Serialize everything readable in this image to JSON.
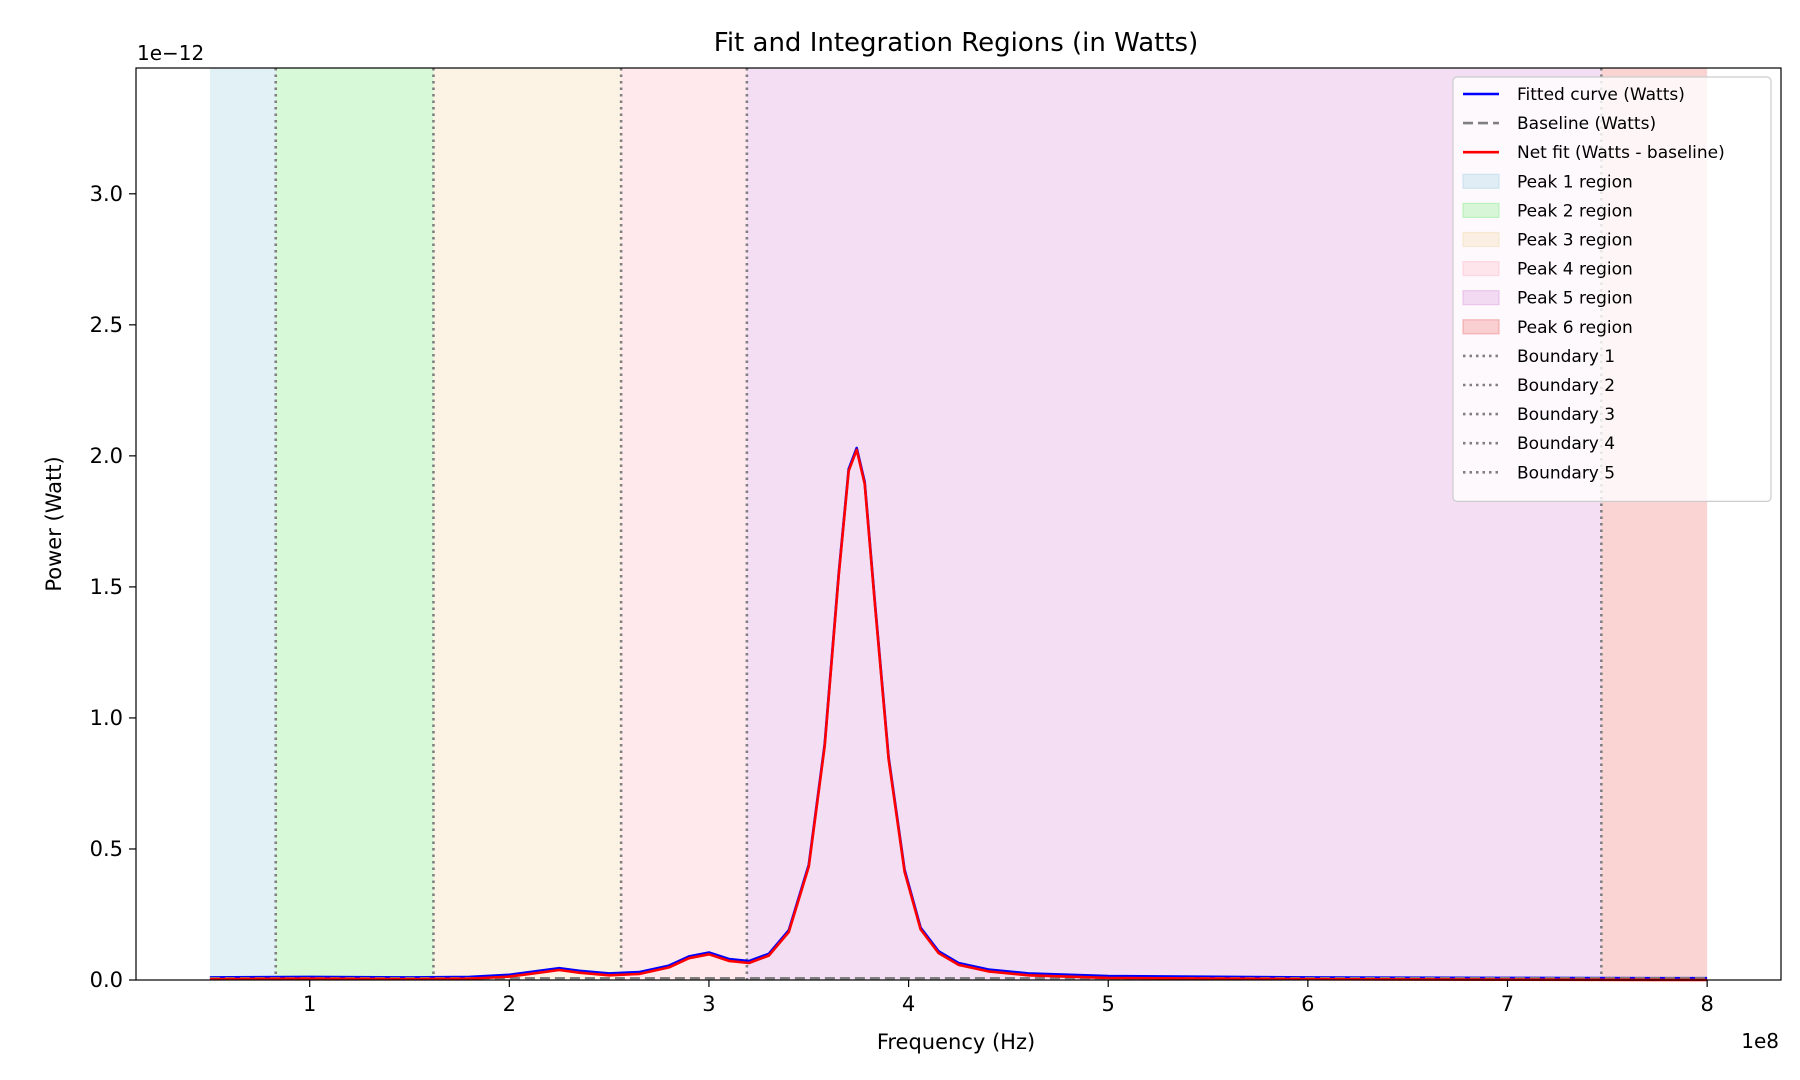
{
  "chart_data": {
    "type": "line",
    "title": "Fit and Integration Regions (in Watts)",
    "xlabel": "Frequency (Hz)",
    "ylabel": "Power (Watt)",
    "x_offset_label": "1e8",
    "y_offset_label": "1e−12",
    "xlim": [
      0.13,
      8.37
    ],
    "ylim": [
      0,
      3.48
    ],
    "x_ticks": [
      1,
      2,
      3,
      4,
      5,
      6,
      7,
      8
    ],
    "x_tick_labels": [
      "1",
      "2",
      "3",
      "4",
      "5",
      "6",
      "7",
      "8"
    ],
    "y_ticks": [
      0,
      0.5,
      1.0,
      1.5,
      2.0,
      2.5,
      3.0
    ],
    "y_tick_labels": [
      "0.0",
      "0.5",
      "1.0",
      "1.5",
      "2.0",
      "2.5",
      "3.0"
    ],
    "grid": false,
    "legend_position": "top-right",
    "regions": [
      {
        "name": "Peak 1 region",
        "x0": 0.5,
        "x1": 0.83,
        "color": "#add8e6"
      },
      {
        "name": "Peak 2 region",
        "x0": 0.83,
        "x1": 1.62,
        "color": "#90ee90"
      },
      {
        "name": "Peak 3 region",
        "x0": 1.62,
        "x1": 2.56,
        "color": "#f5deb3"
      },
      {
        "name": "Peak 4 region",
        "x0": 2.56,
        "x1": 3.19,
        "color": "#ffc0cb"
      },
      {
        "name": "Peak 5 region",
        "x0": 3.19,
        "x1": 7.47,
        "color": "#dda0dd"
      },
      {
        "name": "Peak 6 region",
        "x0": 7.47,
        "x1": 8.0,
        "color": "#f08080"
      }
    ],
    "boundaries": [
      {
        "name": "Boundary 1",
        "x": 0.83
      },
      {
        "name": "Boundary 2",
        "x": 1.62
      },
      {
        "name": "Boundary 3",
        "x": 2.56
      },
      {
        "name": "Boundary 4",
        "x": 3.19
      },
      {
        "name": "Boundary 5",
        "x": 7.47
      }
    ],
    "series": [
      {
        "name": "Fitted curve (Watts)",
        "color": "#0000ff",
        "style": "solid",
        "x": [
          0.5,
          1.0,
          1.5,
          1.8,
          2.0,
          2.15,
          2.25,
          2.35,
          2.5,
          2.65,
          2.8,
          2.9,
          3.0,
          3.1,
          3.2,
          3.3,
          3.4,
          3.5,
          3.58,
          3.65,
          3.7,
          3.74,
          3.78,
          3.83,
          3.9,
          3.98,
          4.06,
          4.15,
          4.25,
          4.4,
          4.6,
          5.0,
          6.0,
          7.0,
          8.0
        ],
        "y": [
          0.01,
          0.012,
          0.01,
          0.012,
          0.02,
          0.035,
          0.045,
          0.035,
          0.025,
          0.03,
          0.055,
          0.09,
          0.105,
          0.08,
          0.072,
          0.1,
          0.19,
          0.44,
          0.9,
          1.55,
          1.95,
          2.03,
          1.9,
          1.45,
          0.85,
          0.42,
          0.2,
          0.11,
          0.065,
          0.04,
          0.025,
          0.015,
          0.01,
          0.008,
          0.007
        ]
      },
      {
        "name": "Baseline (Watts)",
        "color": "#808080",
        "style": "dashed",
        "x": [
          0.5,
          8.0
        ],
        "y": [
          0.007,
          0.007
        ]
      },
      {
        "name": "Net fit (Watts - baseline)",
        "color": "#ff0000",
        "style": "solid",
        "x": [
          0.5,
          1.0,
          1.5,
          1.8,
          2.0,
          2.15,
          2.25,
          2.35,
          2.5,
          2.65,
          2.8,
          2.9,
          3.0,
          3.1,
          3.2,
          3.3,
          3.4,
          3.5,
          3.58,
          3.65,
          3.7,
          3.74,
          3.78,
          3.83,
          3.9,
          3.98,
          4.06,
          4.15,
          4.25,
          4.4,
          4.6,
          5.0,
          6.0,
          7.0,
          8.0
        ],
        "y": [
          0.003,
          0.005,
          0.003,
          0.005,
          0.013,
          0.028,
          0.038,
          0.028,
          0.018,
          0.023,
          0.048,
          0.083,
          0.098,
          0.073,
          0.065,
          0.093,
          0.183,
          0.433,
          0.893,
          1.543,
          1.943,
          2.023,
          1.893,
          1.443,
          0.843,
          0.413,
          0.193,
          0.103,
          0.058,
          0.033,
          0.018,
          0.008,
          0.003,
          0.001,
          0.0
        ]
      }
    ]
  }
}
